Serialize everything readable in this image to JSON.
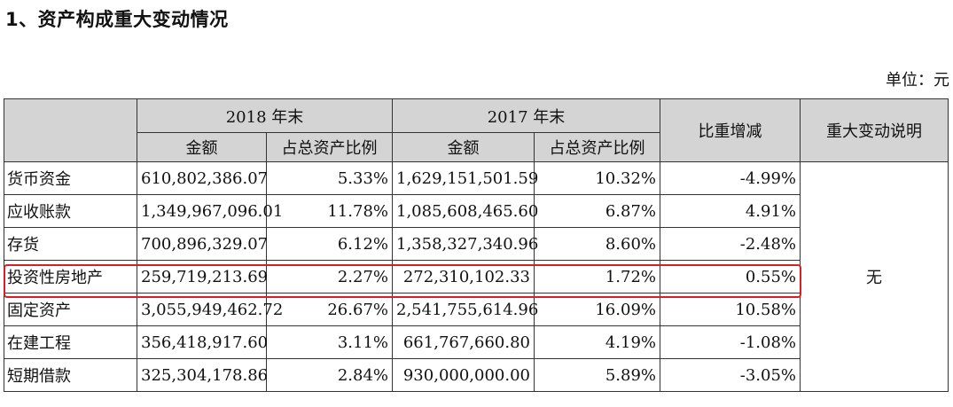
{
  "title": "1、资产构成重大变动情况",
  "unit_label": "单位：元",
  "header": {
    "group_2018": "2018 年末",
    "group_2017": "2017 年末",
    "amount": "金额",
    "ratio": "占总资产比例",
    "change": "比重增减",
    "note": "重大变动说明"
  },
  "rows": [
    {
      "item": "货币资金",
      "amt2018": "610,802,386.07",
      "pct2018": "5.33%",
      "amt2017": "1,629,151,501.59",
      "pct2017": "10.32%",
      "change": "-4.99%"
    },
    {
      "item": "应收账款",
      "amt2018": "1,349,967,096.01",
      "pct2018": "11.78%",
      "amt2017": "1,085,608,465.60",
      "pct2017": "6.87%",
      "change": "4.91%"
    },
    {
      "item": "存货",
      "amt2018": "700,896,329.07",
      "pct2018": "6.12%",
      "amt2017": "1,358,327,340.96",
      "pct2017": "8.60%",
      "change": "-2.48%"
    },
    {
      "item": "投资性房地产",
      "amt2018": "259,719,213.69",
      "pct2018": "2.27%",
      "amt2017": "272,310,102.33",
      "pct2017": "1.72%",
      "change": "0.55%"
    },
    {
      "item": "固定资产",
      "amt2018": "3,055,949,462.72",
      "pct2018": "26.67%",
      "amt2017": "2,541,755,614.96",
      "pct2017": "16.09%",
      "change": "10.58%"
    },
    {
      "item": "在建工程",
      "amt2018": "356,418,917.60",
      "pct2018": "3.11%",
      "amt2017": "661,767,660.80",
      "pct2017": "4.19%",
      "change": "-1.08%"
    },
    {
      "item": "短期借款",
      "amt2018": "325,304,178.86",
      "pct2018": "2.84%",
      "amt2017": "930,000,000.00",
      "pct2017": "5.89%",
      "change": "-3.05%"
    }
  ],
  "note_value": "无",
  "highlight_color": "#d61f27",
  "header_bg": "#d4d4d4"
}
